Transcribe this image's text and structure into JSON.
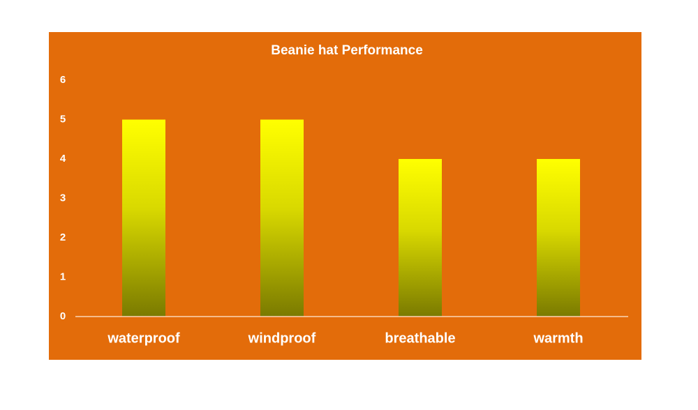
{
  "chart_data": {
    "type": "bar",
    "title": "Beanie hat Performance",
    "categories": [
      "waterproof",
      "windproof",
      "breathable",
      "warmth"
    ],
    "values": [
      5,
      5,
      4,
      4
    ],
    "color": "#ffff00",
    "ylim": [
      0,
      6
    ],
    "yticks": [
      0,
      1,
      2,
      3,
      4,
      5,
      6
    ],
    "grid": false
  }
}
